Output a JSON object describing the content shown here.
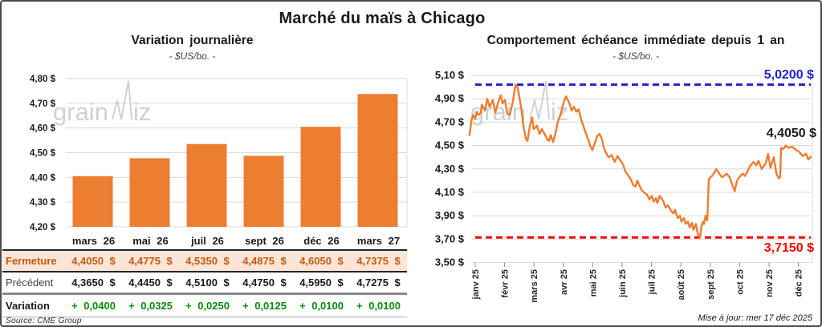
{
  "page": {
    "title": "Marché du maïs à Chicago",
    "update_note": "Mise à jour: mer 17 déc 2025",
    "source_note": "Source: CME Group",
    "watermark": "grainwiz"
  },
  "colors": {
    "series_orange": "#ED7D31",
    "high_blue": "#2222CC",
    "low_red": "#FF0000",
    "variation_green": "#078C07",
    "fermeture_text": "#C55A11",
    "fermeture_bg": "#FBE5D6",
    "grid": "#D9D9D9",
    "watermark_gray": "#C9C9C9",
    "text_dark": "#1A1A1A"
  },
  "chart_data": [
    {
      "type": "bar",
      "title": "Variation journalière",
      "subtitle": "- $US/bo. -",
      "categories": [
        "mars 26",
        "mai 26",
        "juil 26",
        "sept 26",
        "déc 26",
        "mars 27"
      ],
      "values": [
        4.405,
        4.4775,
        4.535,
        4.4875,
        4.605,
        4.7375
      ],
      "ylim": [
        4.2,
        4.8
      ],
      "ytick_step": 0.1,
      "ytick_labels": [
        "4,20 $",
        "4,30 $",
        "4,40 $",
        "4,50 $",
        "4,60 $",
        "4,70 $",
        "4,80 $"
      ],
      "grid": true,
      "bar_color": "#ED7D31"
    },
    {
      "type": "line",
      "title": "Comportement échéance immédiate depuis 1 an",
      "subtitle": "- $US/bo. -",
      "x_categories": [
        "janv 25",
        "févr 25",
        "mars 25",
        "avr 25",
        "mai 25",
        "juin 25",
        "juil 25",
        "août 25",
        "sept 25",
        "oct 25",
        "nov 25",
        "déc 25"
      ],
      "ylim": [
        3.5,
        5.1
      ],
      "ytick_step": 0.2,
      "ytick_labels": [
        "3,50 $",
        "3,70 $",
        "3,90 $",
        "4,10 $",
        "4,30 $",
        "4,50 $",
        "4,70 $",
        "4,90 $",
        "5,10 $"
      ],
      "grid": true,
      "high_line": {
        "value": 5.02,
        "label": "5,0200 $"
      },
      "low_line": {
        "value": 3.715,
        "label": "3,7150 $"
      },
      "last_value": 4.405,
      "last_label": "4,4050 $",
      "series": [
        {
          "name": "échéance immédiate",
          "color": "#ED7D31",
          "points": [
            [
              -0.19,
              4.59
            ],
            [
              -0.14,
              4.7
            ],
            [
              -0.08,
              4.76
            ],
            [
              0.0,
              4.73
            ],
            [
              0.05,
              4.79
            ],
            [
              0.1,
              4.76
            ],
            [
              0.19,
              4.78
            ],
            [
              0.22,
              4.85
            ],
            [
              0.33,
              4.8
            ],
            [
              0.41,
              4.9
            ],
            [
              0.49,
              4.83
            ],
            [
              0.6,
              4.89
            ],
            [
              0.68,
              4.78
            ],
            [
              0.77,
              4.86
            ],
            [
              0.87,
              4.93
            ],
            [
              0.93,
              4.86
            ],
            [
              1.01,
              4.89
            ],
            [
              1.09,
              4.77
            ],
            [
              1.17,
              4.76
            ],
            [
              1.28,
              4.87
            ],
            [
              1.37,
              5.02
            ],
            [
              1.45,
              4.99
            ],
            [
              1.56,
              4.83
            ],
            [
              1.64,
              4.67
            ],
            [
              1.72,
              4.56
            ],
            [
              1.78,
              4.54
            ],
            [
              1.86,
              4.67
            ],
            [
              1.94,
              4.74
            ],
            [
              1.99,
              4.64
            ],
            [
              2.1,
              4.67
            ],
            [
              2.19,
              4.6
            ],
            [
              2.27,
              4.64
            ],
            [
              2.38,
              4.59
            ],
            [
              2.46,
              4.55
            ],
            [
              2.51,
              4.54
            ],
            [
              2.57,
              4.59
            ],
            [
              2.65,
              4.53
            ],
            [
              2.73,
              4.6
            ],
            [
              2.81,
              4.7
            ],
            [
              2.92,
              4.78
            ],
            [
              3.01,
              4.87
            ],
            [
              3.09,
              4.92
            ],
            [
              3.17,
              4.88
            ],
            [
              3.22,
              4.85
            ],
            [
              3.28,
              4.8
            ],
            [
              3.36,
              4.83
            ],
            [
              3.44,
              4.79
            ],
            [
              3.52,
              4.81
            ],
            [
              3.61,
              4.72
            ],
            [
              3.69,
              4.66
            ],
            [
              3.77,
              4.6
            ],
            [
              3.85,
              4.55
            ],
            [
              3.91,
              4.5
            ],
            [
              3.99,
              4.46
            ],
            [
              4.07,
              4.52
            ],
            [
              4.15,
              4.58
            ],
            [
              4.23,
              4.6
            ],
            [
              4.32,
              4.55
            ],
            [
              4.37,
              4.49
            ],
            [
              4.43,
              4.45
            ],
            [
              4.51,
              4.41
            ],
            [
              4.56,
              4.4
            ],
            [
              4.64,
              4.42
            ],
            [
              4.75,
              4.36
            ],
            [
              4.84,
              4.41
            ],
            [
              4.92,
              4.38
            ],
            [
              5.03,
              4.34
            ],
            [
              5.11,
              4.28
            ],
            [
              5.19,
              4.25
            ],
            [
              5.3,
              4.21
            ],
            [
              5.38,
              4.16
            ],
            [
              5.46,
              4.15
            ],
            [
              5.52,
              4.2
            ],
            [
              5.57,
              4.17
            ],
            [
              5.66,
              4.12
            ],
            [
              5.74,
              4.1
            ],
            [
              5.85,
              4.08
            ],
            [
              5.93,
              4.04
            ],
            [
              6.01,
              4.07
            ],
            [
              6.07,
              4.02
            ],
            [
              6.15,
              4.05
            ],
            [
              6.2,
              4.01
            ],
            [
              6.28,
              4.07
            ],
            [
              6.39,
              4.03
            ],
            [
              6.48,
              3.97
            ],
            [
              6.56,
              3.99
            ],
            [
              6.67,
              3.94
            ],
            [
              6.75,
              3.92
            ],
            [
              6.8,
              3.95
            ],
            [
              6.89,
              3.88
            ],
            [
              6.97,
              3.9
            ],
            [
              7.02,
              3.85
            ],
            [
              7.1,
              3.88
            ],
            [
              7.16,
              3.83
            ],
            [
              7.24,
              3.85
            ],
            [
              7.3,
              3.8
            ],
            [
              7.38,
              3.84
            ],
            [
              7.43,
              3.78
            ],
            [
              7.51,
              3.83
            ],
            [
              7.57,
              3.75
            ],
            [
              7.65,
              3.71
            ],
            [
              7.7,
              3.81
            ],
            [
              7.76,
              3.85
            ],
            [
              7.79,
              3.83
            ],
            [
              7.84,
              3.9
            ],
            [
              7.9,
              3.86
            ],
            [
              7.95,
              4.21
            ],
            [
              8.01,
              4.23
            ],
            [
              8.06,
              4.24
            ],
            [
              8.14,
              4.27
            ],
            [
              8.2,
              4.3
            ],
            [
              8.31,
              4.26
            ],
            [
              8.39,
              4.23
            ],
            [
              8.47,
              4.24
            ],
            [
              8.55,
              4.26
            ],
            [
              8.66,
              4.23
            ],
            [
              8.74,
              4.17
            ],
            [
              8.83,
              4.11
            ],
            [
              8.91,
              4.2
            ],
            [
              8.99,
              4.23
            ],
            [
              9.1,
              4.26
            ],
            [
              9.18,
              4.24
            ],
            [
              9.29,
              4.29
            ],
            [
              9.37,
              4.33
            ],
            [
              9.48,
              4.36
            ],
            [
              9.56,
              4.33
            ],
            [
              9.64,
              4.37
            ],
            [
              9.75,
              4.3
            ],
            [
              9.84,
              4.33
            ],
            [
              9.89,
              4.35
            ],
            [
              9.97,
              4.43
            ],
            [
              10.05,
              4.31
            ],
            [
              10.16,
              4.4
            ],
            [
              10.25,
              4.26
            ],
            [
              10.33,
              4.22
            ],
            [
              10.38,
              4.23
            ],
            [
              10.41,
              4.48
            ],
            [
              10.49,
              4.47
            ],
            [
              10.57,
              4.5
            ],
            [
              10.66,
              4.48
            ],
            [
              10.79,
              4.49
            ],
            [
              10.93,
              4.46
            ],
            [
              11.01,
              4.45
            ],
            [
              11.15,
              4.41
            ],
            [
              11.26,
              4.43
            ],
            [
              11.34,
              4.38
            ],
            [
              11.42,
              4.405
            ]
          ]
        }
      ]
    }
  ],
  "table": {
    "col_headers": [
      "mars 26",
      "mai 26",
      "juil 26",
      "sept 26",
      "déc 26",
      "mars 27"
    ],
    "rows": [
      {
        "label": "Fermeture",
        "style": "fermeture",
        "values": [
          "4,4050 $",
          "4,4775 $",
          "4,5350 $",
          "4,4875 $",
          "4,6050 $",
          "4,7375 $"
        ]
      },
      {
        "label": "Précédent",
        "style": "precedent",
        "values": [
          "4,3650 $",
          "4,4450 $",
          "4,5100 $",
          "4,4750 $",
          "4,5950 $",
          "4,7275 $"
        ]
      },
      {
        "label": "Variation",
        "style": "variation",
        "values": [
          "+ 0,0400",
          "+ 0,0325",
          "+ 0,0250",
          "+ 0,0125",
          "+ 0,0100",
          "+ 0,0100"
        ]
      }
    ]
  }
}
